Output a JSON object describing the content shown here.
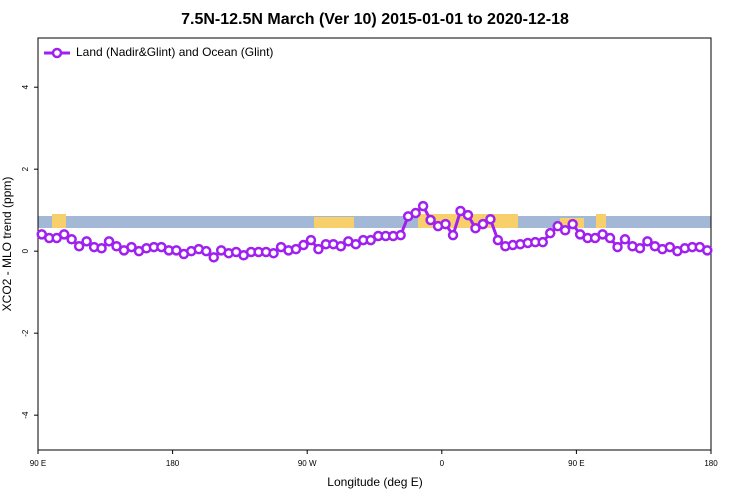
{
  "chart_data": {
    "type": "line",
    "title": "7.5N-12.5N March (Ver 10)   2015-01-01 to 2020-12-18",
    "xlabel": "Longitude (deg E)",
    "ylabel": "XCO2 - MLO trend (ppm)",
    "xlim": [
      90,
      540
    ],
    "ylim": [
      -4.85,
      5.2
    ],
    "xticks": [
      {
        "value": 90,
        "label": "90 E"
      },
      180,
      {
        "value": 270,
        "label": "90 W"
      },
      {
        "value": 360,
        "label": "0"
      },
      {
        "value": 450,
        "label": "90 E"
      },
      {
        "value": 540,
        "label": "180"
      }
    ],
    "yticks": [
      -4,
      -2,
      0,
      2,
      4
    ],
    "legend": "upper left",
    "x": [
      92.5,
      97.5,
      102.5,
      107.5,
      112.5,
      117.5,
      122.5,
      127.5,
      132.5,
      137.5,
      142.5,
      147.5,
      152.5,
      157.5,
      162.5,
      167.5,
      172.5,
      177.5,
      182.5,
      187.5,
      192.5,
      197.5,
      202.5,
      207.5,
      212.5,
      217.5,
      222.5,
      227.5,
      232.5,
      237.5,
      242.5,
      247.5,
      252.5,
      257.5,
      262.5,
      267.5,
      272.5,
      277.5,
      282.5,
      287.5,
      292.5,
      297.5,
      302.5,
      307.5,
      312.5,
      317.5,
      322.5,
      327.5,
      332.5,
      337.5,
      342.5,
      347.5,
      352.5,
      357.5,
      362.5,
      367.5,
      372.5,
      377.5,
      382.5,
      387.5,
      392.5,
      397.5,
      402.5,
      407.5,
      412.5,
      417.5,
      422.5,
      427.5,
      432.5,
      437.5,
      442.5,
      447.5,
      452.5,
      457.5,
      462.5,
      467.5,
      472.5,
      477.5,
      482.5,
      487.5,
      492.5,
      497.5,
      502.5,
      507.5,
      512.5,
      517.5,
      522.5,
      527.5,
      532.5,
      537.5
    ],
    "series": [
      {
        "name": "Land (Nadir&Glint) and Ocean (Glint)",
        "color": "#a020f0",
        "values": [
          0.41,
          0.32,
          0.32,
          0.41,
          0.29,
          0.12,
          0.24,
          0.1,
          0.07,
          0.24,
          0.12,
          0.02,
          0.1,
          0,
          0.07,
          0.1,
          0.1,
          0.02,
          0.02,
          -0.07,
          0,
          0.05,
          0,
          -0.15,
          0.02,
          -0.05,
          -0.02,
          -0.1,
          -0.02,
          -0.02,
          -0.02,
          -0.05,
          0.1,
          0.02,
          0.05,
          0.15,
          0.27,
          0.05,
          0.17,
          0.17,
          0.12,
          0.24,
          0.17,
          0.27,
          0.27,
          0.37,
          0.37,
          0.37,
          0.39,
          0.85,
          0.93,
          1.1,
          0.76,
          0.61,
          0.66,
          0.39,
          0.98,
          0.88,
          0.56,
          0.66,
          0.78,
          0.27,
          0.12,
          0.15,
          0.17,
          0.2,
          0.22,
          0.22,
          0.44,
          0.61,
          0.51,
          0.66,
          0.41,
          0.32,
          0.32,
          0.41,
          0.32,
          0.1,
          0.29,
          0.12,
          0.07,
          0.24,
          0.12,
          0.05,
          0.1,
          0,
          0.07,
          0.1,
          0.1,
          0.02
        ]
      }
    ]
  }
}
